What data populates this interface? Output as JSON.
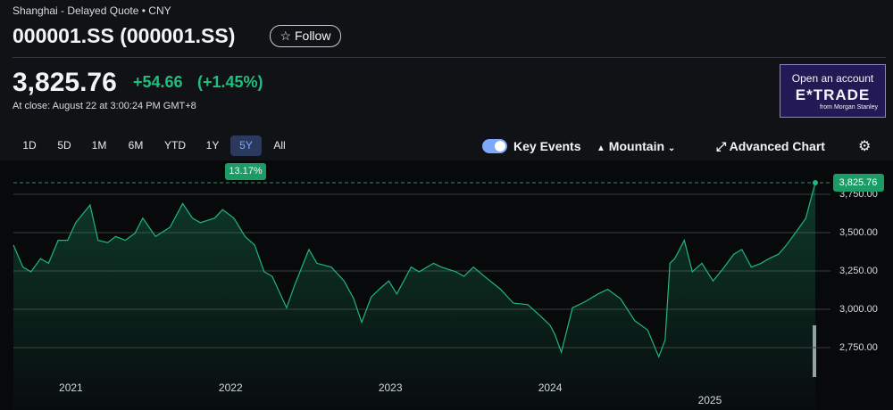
{
  "header": {
    "exchange": "Shanghai - Delayed Quote • CNY",
    "title": "000001.SS (000001.SS)",
    "follow": "Follow"
  },
  "quote": {
    "price": "3,825.76",
    "change": "+54.66",
    "change_pct": "(+1.45%)",
    "close_time": "At close: August 22 at 3:00:24 PM GMT+8"
  },
  "ad": {
    "line1": "Open an account",
    "brand": "E*TRADE",
    "sub": "from Morgan Stanley"
  },
  "ranges": [
    "1D",
    "5D",
    "1M",
    "6M",
    "YTD",
    "1Y",
    "5Y",
    "All"
  ],
  "selected_range": "5Y",
  "range_change": "13.17%",
  "controls": {
    "key_events": "Key Events",
    "chart_type": "Mountain",
    "advanced": "Advanced Chart"
  },
  "chart_data": {
    "type": "area",
    "color": "#1db87a",
    "grid": true,
    "x": [
      2020.64,
      2020.7,
      2020.75,
      2020.81,
      2020.86,
      2020.92,
      2020.98,
      2021.03,
      2021.12,
      2021.17,
      2021.23,
      2021.28,
      2021.34,
      2021.4,
      2021.45,
      2021.53,
      2021.62,
      2021.7,
      2021.76,
      2021.81,
      2021.9,
      2021.95,
      2022.02,
      2022.09,
      2022.15,
      2022.21,
      2022.26,
      2022.35,
      2022.4,
      2022.49,
      2022.54,
      2022.63,
      2022.71,
      2022.77,
      2022.82,
      2022.88,
      2022.93,
      2022.99,
      2023.04,
      2023.13,
      2023.18,
      2023.27,
      2023.32,
      2023.41,
      2023.46,
      2023.52,
      2023.6,
      2023.69,
      2023.77,
      2023.86,
      2023.94,
      2024.0,
      2024.03,
      2024.07,
      2024.14,
      2024.22,
      2024.3,
      2024.36,
      2024.44,
      2024.53,
      2024.61,
      2024.68,
      2024.72,
      2024.75,
      2024.78,
      2024.84,
      2024.89,
      2024.95,
      2025.02,
      2025.09,
      2025.15,
      2025.2,
      2025.26,
      2025.32,
      2025.37,
      2025.43,
      2025.48,
      2025.54,
      2025.6,
      2025.63,
      2025.66
    ],
    "values": [
      3420,
      3275,
      3245,
      3330,
      3300,
      3450,
      3450,
      3565,
      3680,
      3450,
      3435,
      3475,
      3450,
      3495,
      3595,
      3475,
      3535,
      3690,
      3595,
      3565,
      3595,
      3650,
      3595,
      3475,
      3420,
      3245,
      3215,
      3010,
      3155,
      3390,
      3300,
      3275,
      3185,
      3070,
      2915,
      3080,
      3130,
      3185,
      3100,
      3275,
      3245,
      3300,
      3275,
      3245,
      3215,
      3275,
      3205,
      3130,
      3040,
      3030,
      2955,
      2895,
      2835,
      2720,
      3010,
      3050,
      3100,
      3130,
      3070,
      2925,
      2865,
      2690,
      2800,
      3300,
      3330,
      3450,
      3245,
      3300,
      3185,
      3275,
      3360,
      3390,
      3275,
      3300,
      3330,
      3360,
      3420,
      3505,
      3593,
      3710,
      3825.76
    ],
    "xlim": [
      2020.64,
      2025.66
    ],
    "ylim": [
      2343,
      3971
    ],
    "xticks": [
      2021,
      2022,
      2023,
      2024,
      2025
    ],
    "yticks": [
      {
        "value": 3750,
        "label": "3,750.00"
      },
      {
        "value": 3500,
        "label": "3,500.00"
      },
      {
        "value": 3250,
        "label": "3,250.00"
      },
      {
        "value": 3000,
        "label": "3,000.00"
      },
      {
        "value": 2750,
        "label": "2,750.00"
      }
    ],
    "last_label": "3,825.76"
  }
}
